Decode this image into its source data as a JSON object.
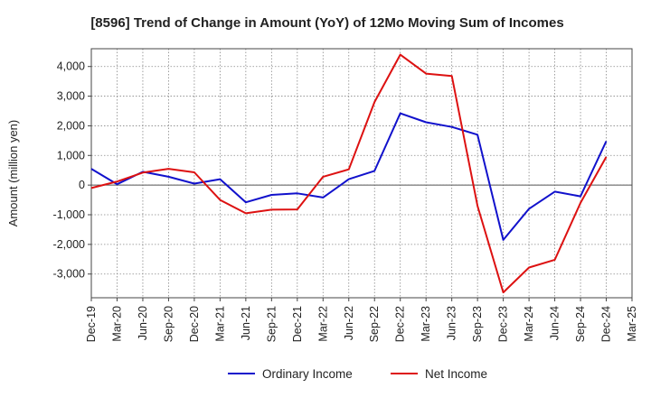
{
  "chart_data": {
    "type": "line",
    "title": "[8596]  Trend of Change in Amount (YoY) of 12Mo Moving Sum of Incomes",
    "xlabel": "",
    "ylabel": "Amount (million yen)",
    "x": [
      "Dec-19",
      "Mar-20",
      "Jun-20",
      "Sep-20",
      "Dec-20",
      "Mar-21",
      "Jun-21",
      "Sep-21",
      "Dec-21",
      "Mar-22",
      "Jun-22",
      "Sep-22",
      "Dec-22",
      "Mar-23",
      "Jun-23",
      "Sep-23",
      "Dec-23",
      "Mar-24",
      "Jun-24",
      "Sep-24",
      "Dec-24",
      "Mar-25"
    ],
    "ylim": [
      -3800,
      4600
    ],
    "yticks": [
      -3000,
      -2000,
      -1000,
      0,
      1000,
      2000,
      3000,
      4000
    ],
    "ytick_labels": [
      "-3,000",
      "-2,000",
      "-1,000",
      "0",
      "1,000",
      "2,000",
      "3,000",
      "4,000"
    ],
    "grid": true,
    "legend_position": "bottom-center",
    "series": [
      {
        "name": "Ordinary Income",
        "color": "#1111cc",
        "values": [
          550,
          30,
          450,
          280,
          50,
          200,
          -580,
          -330,
          -280,
          -420,
          200,
          480,
          2420,
          2120,
          1960,
          1700,
          -1850,
          -800,
          -220,
          -380,
          1480,
          null
        ]
      },
      {
        "name": "Net Income",
        "color": "#dd1111",
        "values": [
          -100,
          120,
          420,
          550,
          430,
          -500,
          -950,
          -830,
          -820,
          280,
          530,
          2800,
          4400,
          3760,
          3680,
          -700,
          -3620,
          -2780,
          -2520,
          -600,
          950,
          null
        ]
      }
    ]
  }
}
